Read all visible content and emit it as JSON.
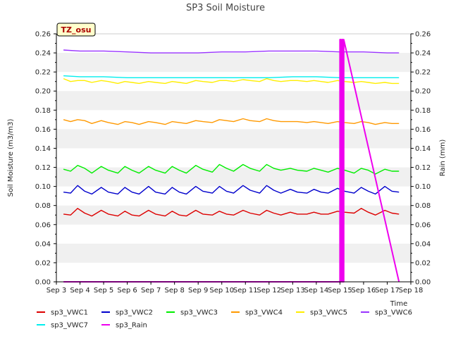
{
  "chart_data": {
    "type": "line",
    "title": "SP3 Soil Moisture",
    "annotation": "TZ_osu",
    "xlabel": "Time",
    "ylabel": "Soil Moisture (m3/m3)",
    "y2label": "Rain (mm)",
    "xlim": [
      0,
      15
    ],
    "ylim": [
      0,
      0.26
    ],
    "y2lim": [
      0,
      0.26
    ],
    "x_ticks": [
      "Sep 3",
      "Sep 4",
      "Sep 5",
      "Sep 6",
      "Sep 7",
      "Sep 8",
      "Sep 9",
      "Sep 10",
      "Sep 11",
      "Sep 12",
      "Sep 13",
      "Sep 14",
      "Sep 15",
      "Sep 16",
      "Sep 17",
      "Sep 18"
    ],
    "y_ticks": [
      "0.00",
      "0.02",
      "0.04",
      "0.06",
      "0.08",
      "0.10",
      "0.12",
      "0.14",
      "0.16",
      "0.18",
      "0.20",
      "0.22",
      "0.24",
      "0.26"
    ],
    "y2_ticks": [
      "0.00",
      "0.02",
      "0.04",
      "0.06",
      "0.08",
      "0.10",
      "0.12",
      "0.14",
      "0.16",
      "0.18",
      "0.20",
      "0.22",
      "0.24",
      "0.26"
    ],
    "grid": "horizontal bands",
    "legend_position": "bottom",
    "series": [
      {
        "name": "sp3_VWC1",
        "color": "#dd0000",
        "x": [
          0.3,
          0.6,
          0.9,
          1.2,
          1.5,
          1.9,
          2.2,
          2.6,
          2.9,
          3.2,
          3.5,
          3.9,
          4.2,
          4.6,
          4.9,
          5.2,
          5.5,
          5.9,
          6.2,
          6.6,
          6.9,
          7.2,
          7.5,
          7.9,
          8.2,
          8.6,
          8.9,
          9.2,
          9.5,
          9.9,
          10.2,
          10.6,
          10.9,
          11.2,
          11.5,
          11.9,
          12.2,
          12.6,
          12.9,
          13.2,
          13.5,
          13.9,
          14.2,
          14.5
        ],
        "values": [
          0.071,
          0.07,
          0.077,
          0.072,
          0.069,
          0.075,
          0.071,
          0.069,
          0.074,
          0.07,
          0.069,
          0.075,
          0.071,
          0.069,
          0.074,
          0.07,
          0.069,
          0.075,
          0.071,
          0.07,
          0.074,
          0.071,
          0.07,
          0.075,
          0.072,
          0.07,
          0.075,
          0.072,
          0.07,
          0.073,
          0.071,
          0.071,
          0.073,
          0.071,
          0.071,
          0.074,
          0.073,
          0.072,
          0.077,
          0.073,
          0.07,
          0.075,
          0.072,
          0.071
        ]
      },
      {
        "name": "sp3_VWC2",
        "color": "#0000cc",
        "x": [
          0.3,
          0.6,
          0.9,
          1.2,
          1.5,
          1.9,
          2.2,
          2.6,
          2.9,
          3.2,
          3.5,
          3.9,
          4.2,
          4.6,
          4.9,
          5.2,
          5.5,
          5.9,
          6.2,
          6.6,
          6.9,
          7.2,
          7.5,
          7.9,
          8.2,
          8.6,
          8.9,
          9.2,
          9.5,
          9.9,
          10.2,
          10.6,
          10.9,
          11.2,
          11.5,
          11.9,
          12.2,
          12.6,
          12.9,
          13.2,
          13.5,
          13.9,
          14.2,
          14.5
        ],
        "values": [
          0.094,
          0.093,
          0.101,
          0.095,
          0.092,
          0.099,
          0.094,
          0.092,
          0.099,
          0.094,
          0.092,
          0.1,
          0.094,
          0.092,
          0.099,
          0.094,
          0.092,
          0.1,
          0.095,
          0.093,
          0.1,
          0.095,
          0.093,
          0.101,
          0.096,
          0.093,
          0.101,
          0.096,
          0.093,
          0.097,
          0.094,
          0.093,
          0.097,
          0.094,
          0.093,
          0.098,
          0.095,
          0.093,
          0.099,
          0.095,
          0.092,
          0.1,
          0.095,
          0.094
        ]
      },
      {
        "name": "sp3_VWC3",
        "color": "#00ee00",
        "x": [
          0.3,
          0.6,
          0.9,
          1.2,
          1.5,
          1.9,
          2.2,
          2.6,
          2.9,
          3.2,
          3.5,
          3.9,
          4.2,
          4.6,
          4.9,
          5.2,
          5.5,
          5.9,
          6.2,
          6.6,
          6.9,
          7.2,
          7.5,
          7.9,
          8.2,
          8.6,
          8.9,
          9.2,
          9.5,
          9.9,
          10.2,
          10.6,
          10.9,
          11.2,
          11.5,
          11.9,
          12.2,
          12.6,
          12.9,
          13.2,
          13.5,
          13.9,
          14.2,
          14.5
        ],
        "values": [
          0.118,
          0.116,
          0.122,
          0.119,
          0.114,
          0.121,
          0.117,
          0.114,
          0.121,
          0.117,
          0.114,
          0.121,
          0.117,
          0.114,
          0.121,
          0.117,
          0.114,
          0.122,
          0.118,
          0.115,
          0.123,
          0.119,
          0.116,
          0.123,
          0.119,
          0.116,
          0.123,
          0.119,
          0.117,
          0.119,
          0.117,
          0.116,
          0.119,
          0.117,
          0.115,
          0.119,
          0.117,
          0.114,
          0.119,
          0.117,
          0.113,
          0.118,
          0.116,
          0.116
        ]
      },
      {
        "name": "sp3_VWC4",
        "color": "#ff9900",
        "x": [
          0.3,
          0.6,
          0.9,
          1.2,
          1.5,
          1.9,
          2.2,
          2.6,
          2.9,
          3.2,
          3.5,
          3.9,
          4.2,
          4.6,
          4.9,
          5.2,
          5.5,
          5.9,
          6.2,
          6.6,
          6.9,
          7.2,
          7.5,
          7.9,
          8.2,
          8.6,
          8.9,
          9.2,
          9.5,
          9.9,
          10.2,
          10.6,
          10.9,
          11.2,
          11.5,
          11.9,
          12.2,
          12.6,
          12.9,
          13.2,
          13.5,
          13.9,
          14.2,
          14.5
        ],
        "values": [
          0.17,
          0.168,
          0.17,
          0.169,
          0.166,
          0.169,
          0.167,
          0.165,
          0.168,
          0.167,
          0.165,
          0.168,
          0.167,
          0.165,
          0.168,
          0.167,
          0.166,
          0.169,
          0.168,
          0.167,
          0.17,
          0.169,
          0.168,
          0.171,
          0.169,
          0.168,
          0.171,
          0.169,
          0.168,
          0.168,
          0.168,
          0.167,
          0.168,
          0.167,
          0.166,
          0.168,
          0.167,
          0.166,
          0.168,
          0.167,
          0.165,
          0.167,
          0.166,
          0.166
        ]
      },
      {
        "name": "sp3_VWC5",
        "color": "#ffee00",
        "x": [
          0.3,
          0.6,
          0.9,
          1.2,
          1.5,
          1.9,
          2.2,
          2.6,
          2.9,
          3.2,
          3.5,
          3.9,
          4.2,
          4.6,
          4.9,
          5.2,
          5.5,
          5.9,
          6.2,
          6.6,
          6.9,
          7.2,
          7.5,
          7.9,
          8.2,
          8.6,
          8.9,
          9.2,
          9.5,
          9.9,
          10.2,
          10.6,
          10.9,
          11.2,
          11.5,
          11.9,
          12.2,
          12.6,
          12.9,
          13.2,
          13.5,
          13.9,
          14.2,
          14.5
        ],
        "values": [
          0.213,
          0.21,
          0.211,
          0.211,
          0.209,
          0.211,
          0.21,
          0.208,
          0.21,
          0.209,
          0.208,
          0.21,
          0.209,
          0.208,
          0.21,
          0.209,
          0.208,
          0.211,
          0.21,
          0.209,
          0.211,
          0.211,
          0.21,
          0.212,
          0.211,
          0.21,
          0.213,
          0.211,
          0.21,
          0.211,
          0.211,
          0.21,
          0.211,
          0.21,
          0.209,
          0.211,
          0.21,
          0.209,
          0.21,
          0.209,
          0.208,
          0.209,
          0.208,
          0.208
        ]
      },
      {
        "name": "sp3_VWC6",
        "color": "#9933ff",
        "x": [
          0.3,
          1.0,
          2.0,
          3.0,
          4.0,
          5.0,
          6.0,
          7.0,
          8.0,
          9.0,
          10.0,
          11.0,
          12.0,
          13.0,
          14.0,
          14.5
        ],
        "values": [
          0.243,
          0.242,
          0.242,
          0.241,
          0.24,
          0.24,
          0.24,
          0.241,
          0.241,
          0.242,
          0.242,
          0.242,
          0.241,
          0.241,
          0.24,
          0.24
        ]
      },
      {
        "name": "sp3_VWC7",
        "color": "#00eeee",
        "x": [
          0.3,
          1.0,
          2.0,
          3.0,
          4.0,
          5.0,
          6.0,
          7.0,
          8.0,
          9.0,
          10.0,
          11.0,
          12.0,
          13.0,
          14.0,
          14.5
        ],
        "values": [
          0.216,
          0.215,
          0.215,
          0.214,
          0.214,
          0.214,
          0.214,
          0.214,
          0.214,
          0.214,
          0.215,
          0.215,
          0.214,
          0.214,
          0.214,
          0.214
        ]
      },
      {
        "name": "sp3_Rain",
        "color": "#ee00ee",
        "x": [
          0.3,
          12.0,
          12.0,
          12.04,
          12.04,
          12.08,
          12.08,
          12.12,
          12.12,
          12.16,
          12.16,
          14.5
        ],
        "values": [
          0.0,
          0.0,
          0.254,
          0.254,
          0.0,
          0.0,
          0.254,
          0.254,
          0.0,
          0.0,
          0.254,
          0.0
        ]
      }
    ]
  }
}
